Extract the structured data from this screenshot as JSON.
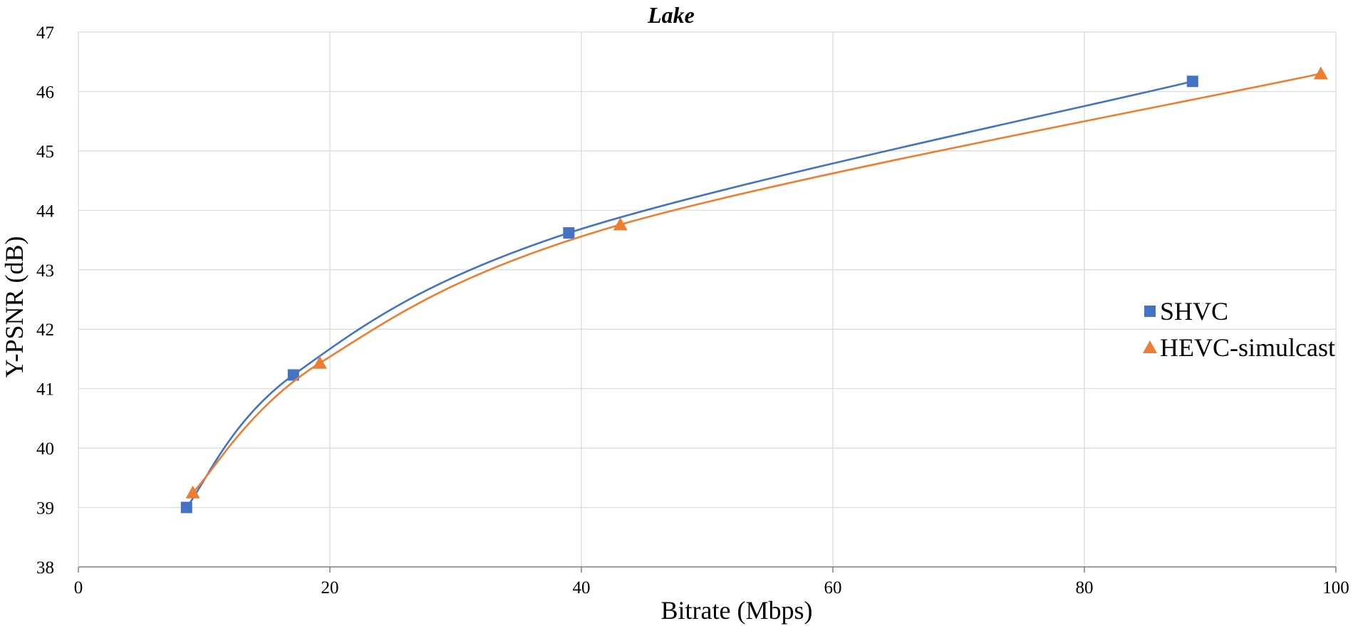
{
  "chart_data": {
    "type": "line",
    "title": "Lake",
    "xlabel": "Bitrate (Mbps)",
    "ylabel": "Y-PSNR (dB)",
    "xlim": [
      0,
      100
    ],
    "ylim": [
      38,
      47
    ],
    "x_ticks": [
      0,
      20,
      40,
      60,
      80,
      100
    ],
    "y_ticks": [
      38,
      39,
      40,
      41,
      42,
      43,
      44,
      45,
      46,
      47
    ],
    "grid": true,
    "smooth": true,
    "legend_position": "right",
    "series": [
      {
        "name": "SHVC",
        "color": "#4472C4",
        "marker": "square",
        "x": [
          8.6,
          17.1,
          39.0,
          88.6
        ],
        "y": [
          39.0,
          41.23,
          43.62,
          46.17
        ]
      },
      {
        "name": "HEVC-simulcast",
        "color": "#ED7D31",
        "marker": "triangle",
        "x": [
          9.1,
          19.2,
          43.1,
          98.8
        ],
        "y": [
          39.25,
          41.43,
          43.76,
          46.3
        ]
      }
    ]
  }
}
